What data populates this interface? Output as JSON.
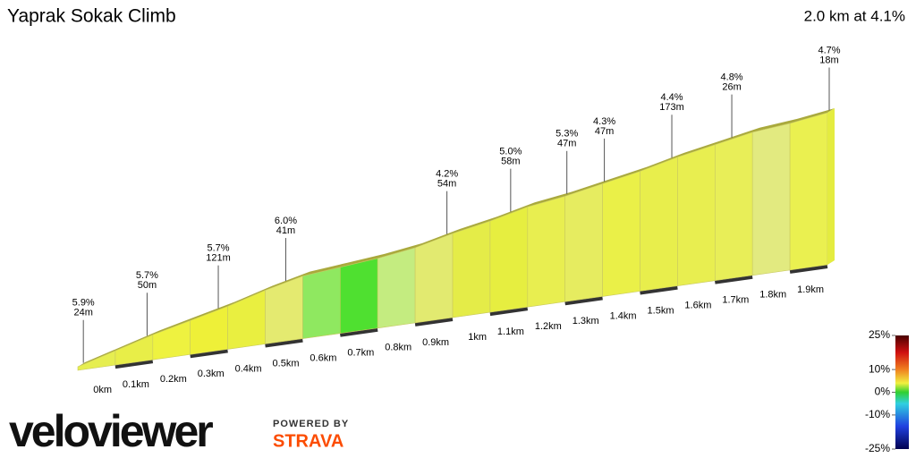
{
  "chart_data": {
    "type": "profile",
    "title": "Yaprak Sokak Climb",
    "subtitle": "2.0 km at 4.1%",
    "x": [
      0,
      0.1,
      0.2,
      0.3,
      0.4,
      0.5,
      0.6,
      0.7,
      0.8,
      0.9,
      1.0,
      1.1,
      1.2,
      1.3,
      1.4,
      1.5,
      1.6,
      1.7,
      1.8,
      1.9,
      2.0
    ],
    "elevation": [
      0,
      6,
      12,
      17,
      22,
      28,
      33,
      35,
      37,
      40,
      45,
      49,
      54,
      57,
      61,
      65,
      70,
      74,
      78,
      80,
      83
    ],
    "colors": [
      "#e6ee50",
      "#e8ee48",
      "#eef240",
      "#eef038",
      "#e9ef40",
      "#e4ea70",
      "#8fe860",
      "#4fe030",
      "#c4ec80",
      "#e2ea70",
      "#e4ec48",
      "#e6ee40",
      "#e8ee50",
      "#e6ec60",
      "#eaf048",
      "#e8ee4c",
      "#e8ee50",
      "#e8ee58",
      "#e2ea80",
      "#eaf050"
    ],
    "xlim": [
      0,
      2.0
    ],
    "xticks": [
      {
        "value": 0,
        "label": "0km"
      },
      {
        "value": 0.1,
        "label": "0.1km"
      },
      {
        "value": 0.2,
        "label": "0.2km"
      },
      {
        "value": 0.3,
        "label": "0.3km"
      },
      {
        "value": 0.4,
        "label": "0.4km"
      },
      {
        "value": 0.5,
        "label": "0.5km"
      },
      {
        "value": 0.6,
        "label": "0.6km"
      },
      {
        "value": 0.7,
        "label": "0.7km"
      },
      {
        "value": 0.8,
        "label": "0.8km"
      },
      {
        "value": 0.9,
        "label": "0.9km"
      },
      {
        "value": 1,
        "label": "1km"
      },
      {
        "value": 1.1,
        "label": "1.1km"
      },
      {
        "value": 1.2,
        "label": "1.2km"
      },
      {
        "value": 1.3,
        "label": "1.3km"
      },
      {
        "value": 1.4,
        "label": "1.4km"
      },
      {
        "value": 1.5,
        "label": "1.5km"
      },
      {
        "value": 1.6,
        "label": "1.6km"
      },
      {
        "value": 1.7,
        "label": "1.7km"
      },
      {
        "value": 1.8,
        "label": "1.8km"
      },
      {
        "value": 1.9,
        "label": "1.9km"
      }
    ],
    "annotations": {
      "x": [
        0.01,
        0.18,
        0.37,
        0.55,
        0.98,
        1.15,
        1.3,
        1.4,
        1.58,
        1.74,
        2.0
      ],
      "grades": [
        5.9,
        5.7,
        5.7,
        6.0,
        4.2,
        5.0,
        5.3,
        4.3,
        4.4,
        4.8,
        4.7
      ],
      "grade_labels": [
        "5.9%",
        "5.7%",
        "5.7%",
        "6.0%",
        "4.2%",
        "5.0%",
        "5.3%",
        "4.3%",
        "4.4%",
        "4.8%",
        "4.7%"
      ],
      "lengths": [
        24,
        50,
        121,
        41,
        54,
        58,
        47,
        47,
        173,
        26,
        18
      ],
      "length_labels": [
        "24m",
        "50m",
        "121m",
        "41m",
        "54m",
        "58m",
        "47m",
        "47m",
        "173m",
        "26m",
        "18m"
      ]
    },
    "legend": {
      "lim": [
        -25,
        25
      ],
      "ticks": [
        {
          "value": 25,
          "label": "25%"
        },
        {
          "value": 10,
          "label": "10%"
        },
        {
          "value": 0,
          "label": "0%"
        },
        {
          "value": -10,
          "label": "-10%"
        },
        {
          "value": -25,
          "label": "-25%"
        }
      ]
    }
  },
  "branding": {
    "logo": "veloviewer",
    "powered_by": "POWERED BY",
    "strava": "STRAVA"
  }
}
